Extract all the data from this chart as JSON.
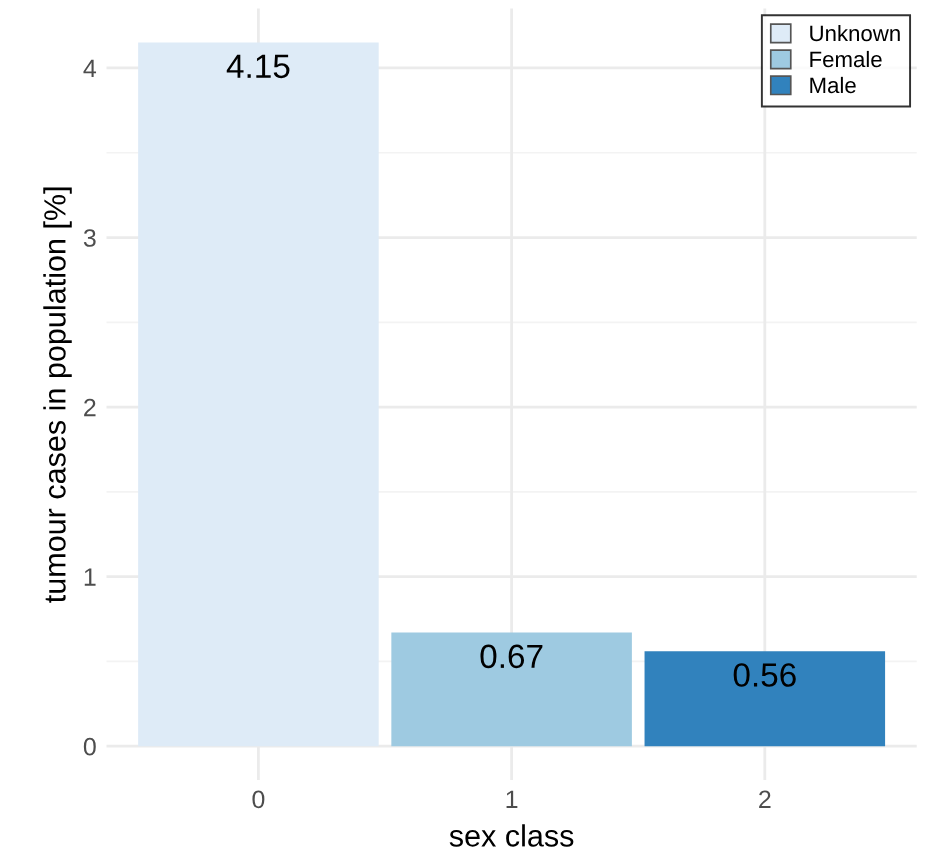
{
  "chart_data": {
    "type": "bar",
    "xlabel": "sex class",
    "ylabel": "tumour cases in population [%]",
    "categories": [
      "0",
      "1",
      "2"
    ],
    "series": [
      {
        "name": "Unknown",
        "color": "#deebf7",
        "values": [
          4.15,
          null,
          null
        ]
      },
      {
        "name": "Female",
        "color": "#9ecae1",
        "values": [
          null,
          0.67,
          null
        ]
      },
      {
        "name": "Male",
        "color": "#3182bd",
        "values": [
          null,
          null,
          0.56
        ]
      }
    ],
    "ylim": [
      -0.2,
      4.35
    ],
    "yticks": [
      0,
      1,
      2,
      3,
      4
    ],
    "grid": true,
    "legend": "top right",
    "data_labels": true
  }
}
